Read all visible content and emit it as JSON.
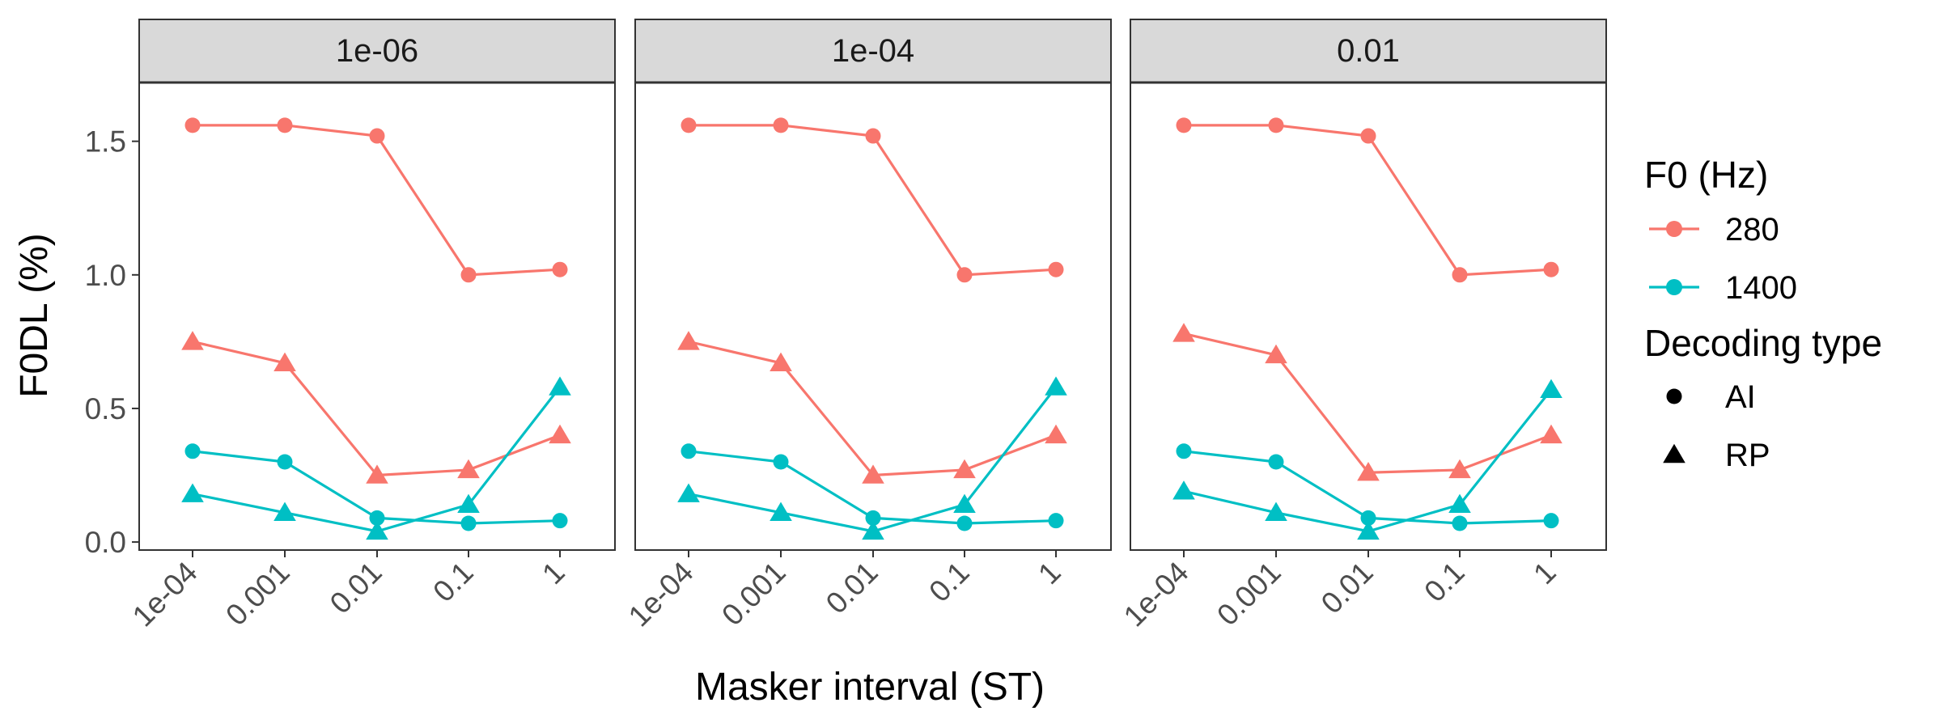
{
  "chart_data": {
    "type": "line",
    "facets": [
      "1e-06",
      "1e-04",
      "0.01"
    ],
    "categories": [
      "1e-04",
      "0.001",
      "0.01",
      "0.1",
      "1"
    ],
    "xlabel": "Masker interval (ST)",
    "ylabel": "F0DL (%)",
    "yticks": [
      "0.0",
      "0.5",
      "1.0",
      "1.5"
    ],
    "ylim": [
      -0.03,
      1.72
    ],
    "grid": false,
    "legend_position": "right",
    "legend": {
      "color_title": "F0 (Hz)",
      "color_items": [
        {
          "label": "280",
          "color": "#F8766D"
        },
        {
          "label": "1400",
          "color": "#00BFC4"
        }
      ],
      "shape_title": "Decoding type",
      "shape_items": [
        {
          "label": "AI",
          "shape": "circle"
        },
        {
          "label": "RP",
          "shape": "triangle"
        }
      ]
    },
    "series": [
      {
        "f0": "280",
        "decoding": "AI",
        "color": "#F8766D",
        "shape": "circle",
        "values": [
          [
            1.56,
            1.56,
            1.52,
            1.0,
            1.02
          ],
          [
            1.56,
            1.56,
            1.52,
            1.0,
            1.02
          ],
          [
            1.56,
            1.56,
            1.52,
            1.0,
            1.02
          ]
        ]
      },
      {
        "f0": "280",
        "decoding": "RP",
        "color": "#F8766D",
        "shape": "triangle",
        "values": [
          [
            0.75,
            0.67,
            0.25,
            0.27,
            0.4
          ],
          [
            0.75,
            0.67,
            0.25,
            0.27,
            0.4
          ],
          [
            0.78,
            0.7,
            0.26,
            0.27,
            0.4
          ]
        ]
      },
      {
        "f0": "1400",
        "decoding": "AI",
        "color": "#00BFC4",
        "shape": "circle",
        "values": [
          [
            0.34,
            0.3,
            0.09,
            0.07,
            0.08
          ],
          [
            0.34,
            0.3,
            0.09,
            0.07,
            0.08
          ],
          [
            0.34,
            0.3,
            0.09,
            0.07,
            0.08
          ]
        ]
      },
      {
        "f0": "1400",
        "decoding": "RP",
        "color": "#00BFC4",
        "shape": "triangle",
        "values": [
          [
            0.18,
            0.11,
            0.04,
            0.14,
            0.58
          ],
          [
            0.18,
            0.11,
            0.04,
            0.14,
            0.58
          ],
          [
            0.19,
            0.11,
            0.04,
            0.14,
            0.57
          ]
        ]
      }
    ]
  }
}
